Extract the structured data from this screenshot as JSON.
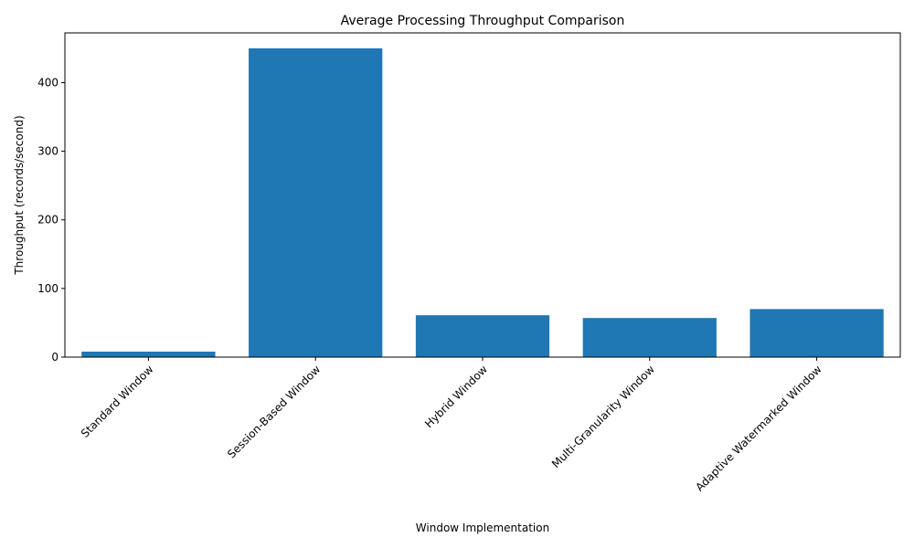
{
  "colors": {
    "bar": "#1f77b4",
    "axis": "#000000",
    "background": "#ffffff"
  },
  "chart_data": {
    "type": "bar",
    "title": "Average Processing Throughput Comparison",
    "xlabel": "Window Implementation",
    "ylabel": "Throughput (records/second)",
    "categories": [
      "Standard Window",
      "Session-Based Window",
      "Hybrid Window",
      "Multi-Granularity Window",
      "Adaptive Watermarked Window"
    ],
    "values": [
      8,
      450,
      61,
      57,
      70
    ],
    "ylim": [
      0,
      472.5
    ],
    "yticks": [
      0,
      100,
      200,
      300,
      400
    ],
    "grid": false,
    "xtick_rotation": 45
  }
}
